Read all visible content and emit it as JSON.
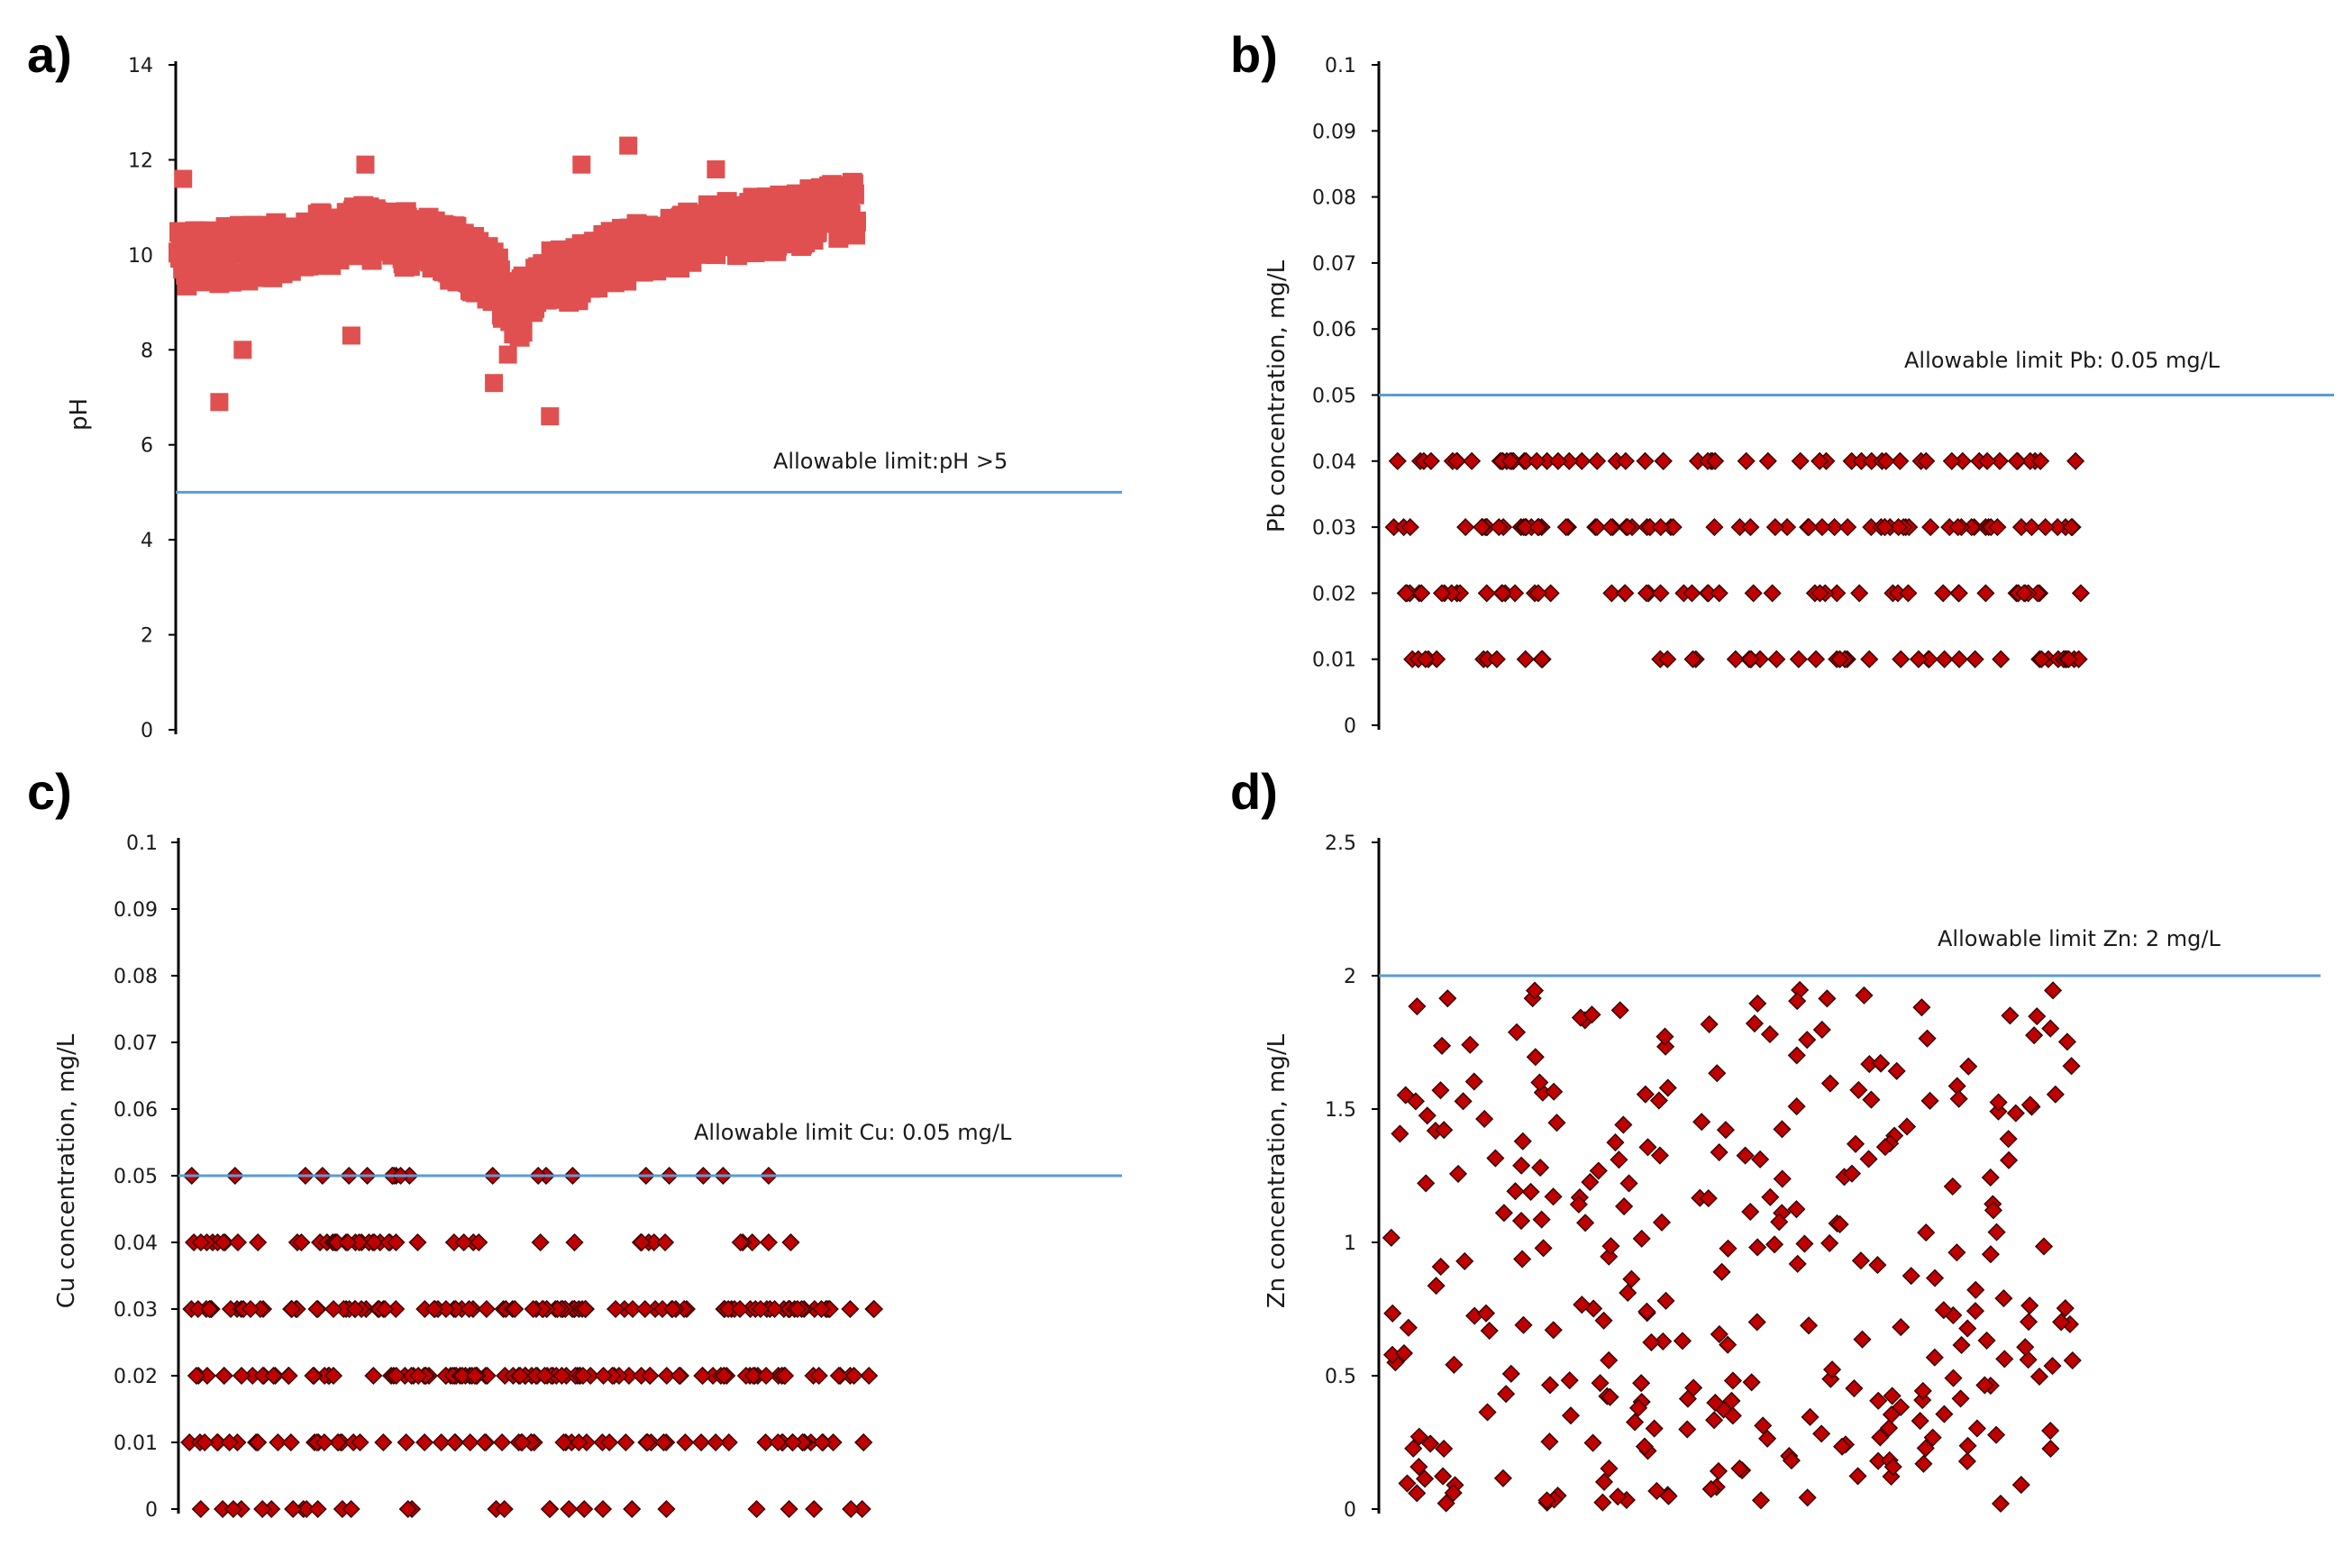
{
  "colors": {
    "marker": "#c00000",
    "marker_square": "#e05050",
    "limit_line": "#5b9bd5",
    "axis": "#000000"
  },
  "chart_data": [
    {
      "panel": "a)",
      "type": "scatter",
      "marker": "square",
      "ylabel": "pH",
      "ylim": [
        0,
        14
      ],
      "yticks": [
        "0",
        "2",
        "4",
        "6",
        "8",
        "10",
        "12",
        "14"
      ],
      "limit": {
        "value": 5,
        "label": "Allowable limit:pH >5"
      },
      "approx_n_points": 730,
      "trend": [
        [
          0,
          9.9
        ],
        [
          40,
          10.0
        ],
        [
          80,
          10.1
        ],
        [
          120,
          10.3
        ],
        [
          160,
          10.5
        ],
        [
          200,
          10.3
        ],
        [
          240,
          10.0
        ],
        [
          270,
          9.5
        ],
        [
          290,
          8.8
        ],
        [
          310,
          9.5
        ],
        [
          340,
          9.6
        ],
        [
          370,
          9.9
        ],
        [
          410,
          10.2
        ],
        [
          460,
          10.5
        ],
        [
          520,
          10.7
        ],
        [
          580,
          11.0
        ]
      ],
      "spread": 0.6,
      "outliers": [
        [
          4,
          11.6
        ],
        [
          35,
          6.9
        ],
        [
          55,
          8.0
        ],
        [
          148,
          8.3
        ],
        [
          160,
          11.9
        ],
        [
          270,
          7.3
        ],
        [
          282,
          7.9
        ],
        [
          318,
          6.6
        ],
        [
          345,
          11.9
        ],
        [
          385,
          12.3
        ],
        [
          460,
          11.8
        ]
      ]
    },
    {
      "panel": "b)",
      "type": "scatter",
      "marker": "diamond",
      "ylabel": "Pb concentration, mg/L",
      "ylim": [
        0,
        0.1
      ],
      "yticks": [
        "0",
        "0.01",
        "0.02",
        "0.03",
        "0.04",
        "0.05",
        "0.06",
        "0.07",
        "0.08",
        "0.09",
        "0.1"
      ],
      "limit": {
        "value": 0.05,
        "label": "Allowable limit Pb: 0.05 mg/L"
      },
      "levels": [
        0.01,
        0.02,
        0.03,
        0.04
      ],
      "approx_n_points": 230
    },
    {
      "panel": "c)",
      "type": "scatter",
      "marker": "diamond",
      "ylabel": "Cu concentration, mg/L",
      "ylim": [
        0,
        0.1
      ],
      "yticks": [
        "0",
        "0.01",
        "0.02",
        "0.03",
        "0.04",
        "0.05",
        "0.06",
        "0.07",
        "0.08",
        "0.09",
        "0.1"
      ],
      "limit": {
        "value": 0.05,
        "label": "Allowable limit Cu: 0.05 mg/L"
      },
      "levels": [
        0,
        0.01,
        0.02,
        0.03,
        0.04,
        0.05
      ],
      "approx_n_points": 380
    },
    {
      "panel": "d)",
      "type": "scatter",
      "marker": "diamond",
      "ylabel": "Zn concentration, mg/L",
      "ylim": [
        0,
        2.5
      ],
      "yticks": [
        "0",
        "0.5",
        "1",
        "1.5",
        "2",
        "2.5"
      ],
      "limit": {
        "value": 2,
        "label": "Allowable limit Zn: 2 mg/L"
      },
      "approx_n_points": 300,
      "value_range": [
        0.02,
        1.98
      ]
    }
  ]
}
